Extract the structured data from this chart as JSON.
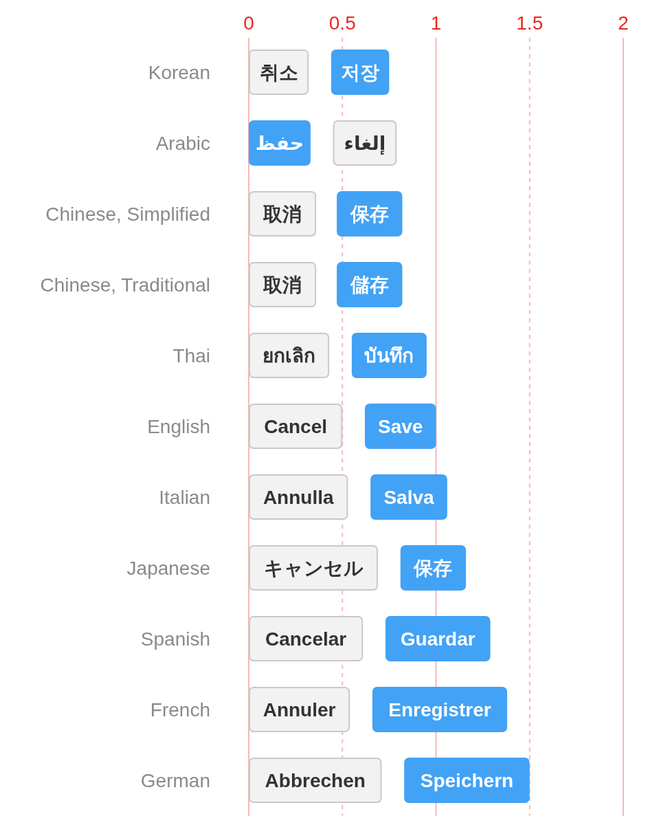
{
  "chart_data": {
    "type": "bar",
    "orientation": "horizontal",
    "categories": [
      "Korean",
      "Arabic",
      "Chinese, Simplified",
      "Chinese, Traditional",
      "Thai",
      "English",
      "Italian",
      "Japanese",
      "Spanish",
      "French",
      "German"
    ],
    "xlim": [
      0,
      2
    ],
    "xticks": [
      0,
      0.5,
      1,
      1.5,
      2
    ],
    "grid": "x",
    "ref_lines": [
      {
        "axis": "x",
        "value": 1,
        "color": "#f5b8b5",
        "line_style": "solid"
      }
    ],
    "series": [
      {
        "color": "#f2f2f2",
        "base": [
          0,
          0.45,
          0,
          0,
          0,
          0,
          0,
          0,
          0,
          0,
          0
        ],
        "values": [
          0.32,
          0.34,
          0.36,
          0.36,
          0.43,
          0.5,
          0.53,
          0.69,
          0.61,
          0.54,
          0.71
        ],
        "value_labels": [
          "취소",
          "إلغاء",
          "取消",
          "取消",
          "ยกเลิก",
          "Cancel",
          "Annulla",
          "キャンセル",
          "Cancelar",
          "Annuler",
          "Abbrechen"
        ]
      },
      {
        "color": "#42a2f5",
        "base": [
          0.44,
          0,
          0.47,
          0.47,
          0.55,
          0.62,
          0.65,
          0.81,
          0.73,
          0.66,
          0.83
        ],
        "values": [
          0.31,
          0.33,
          0.35,
          0.35,
          0.4,
          0.38,
          0.41,
          0.35,
          0.56,
          0.72,
          0.67
        ],
        "value_labels": [
          "저장",
          "حفظ",
          "保存",
          "儲存",
          "บันทึก",
          "Save",
          "Salva",
          "保存",
          "Guardar",
          "Enregistrer",
          "Speichern"
        ]
      }
    ]
  }
}
